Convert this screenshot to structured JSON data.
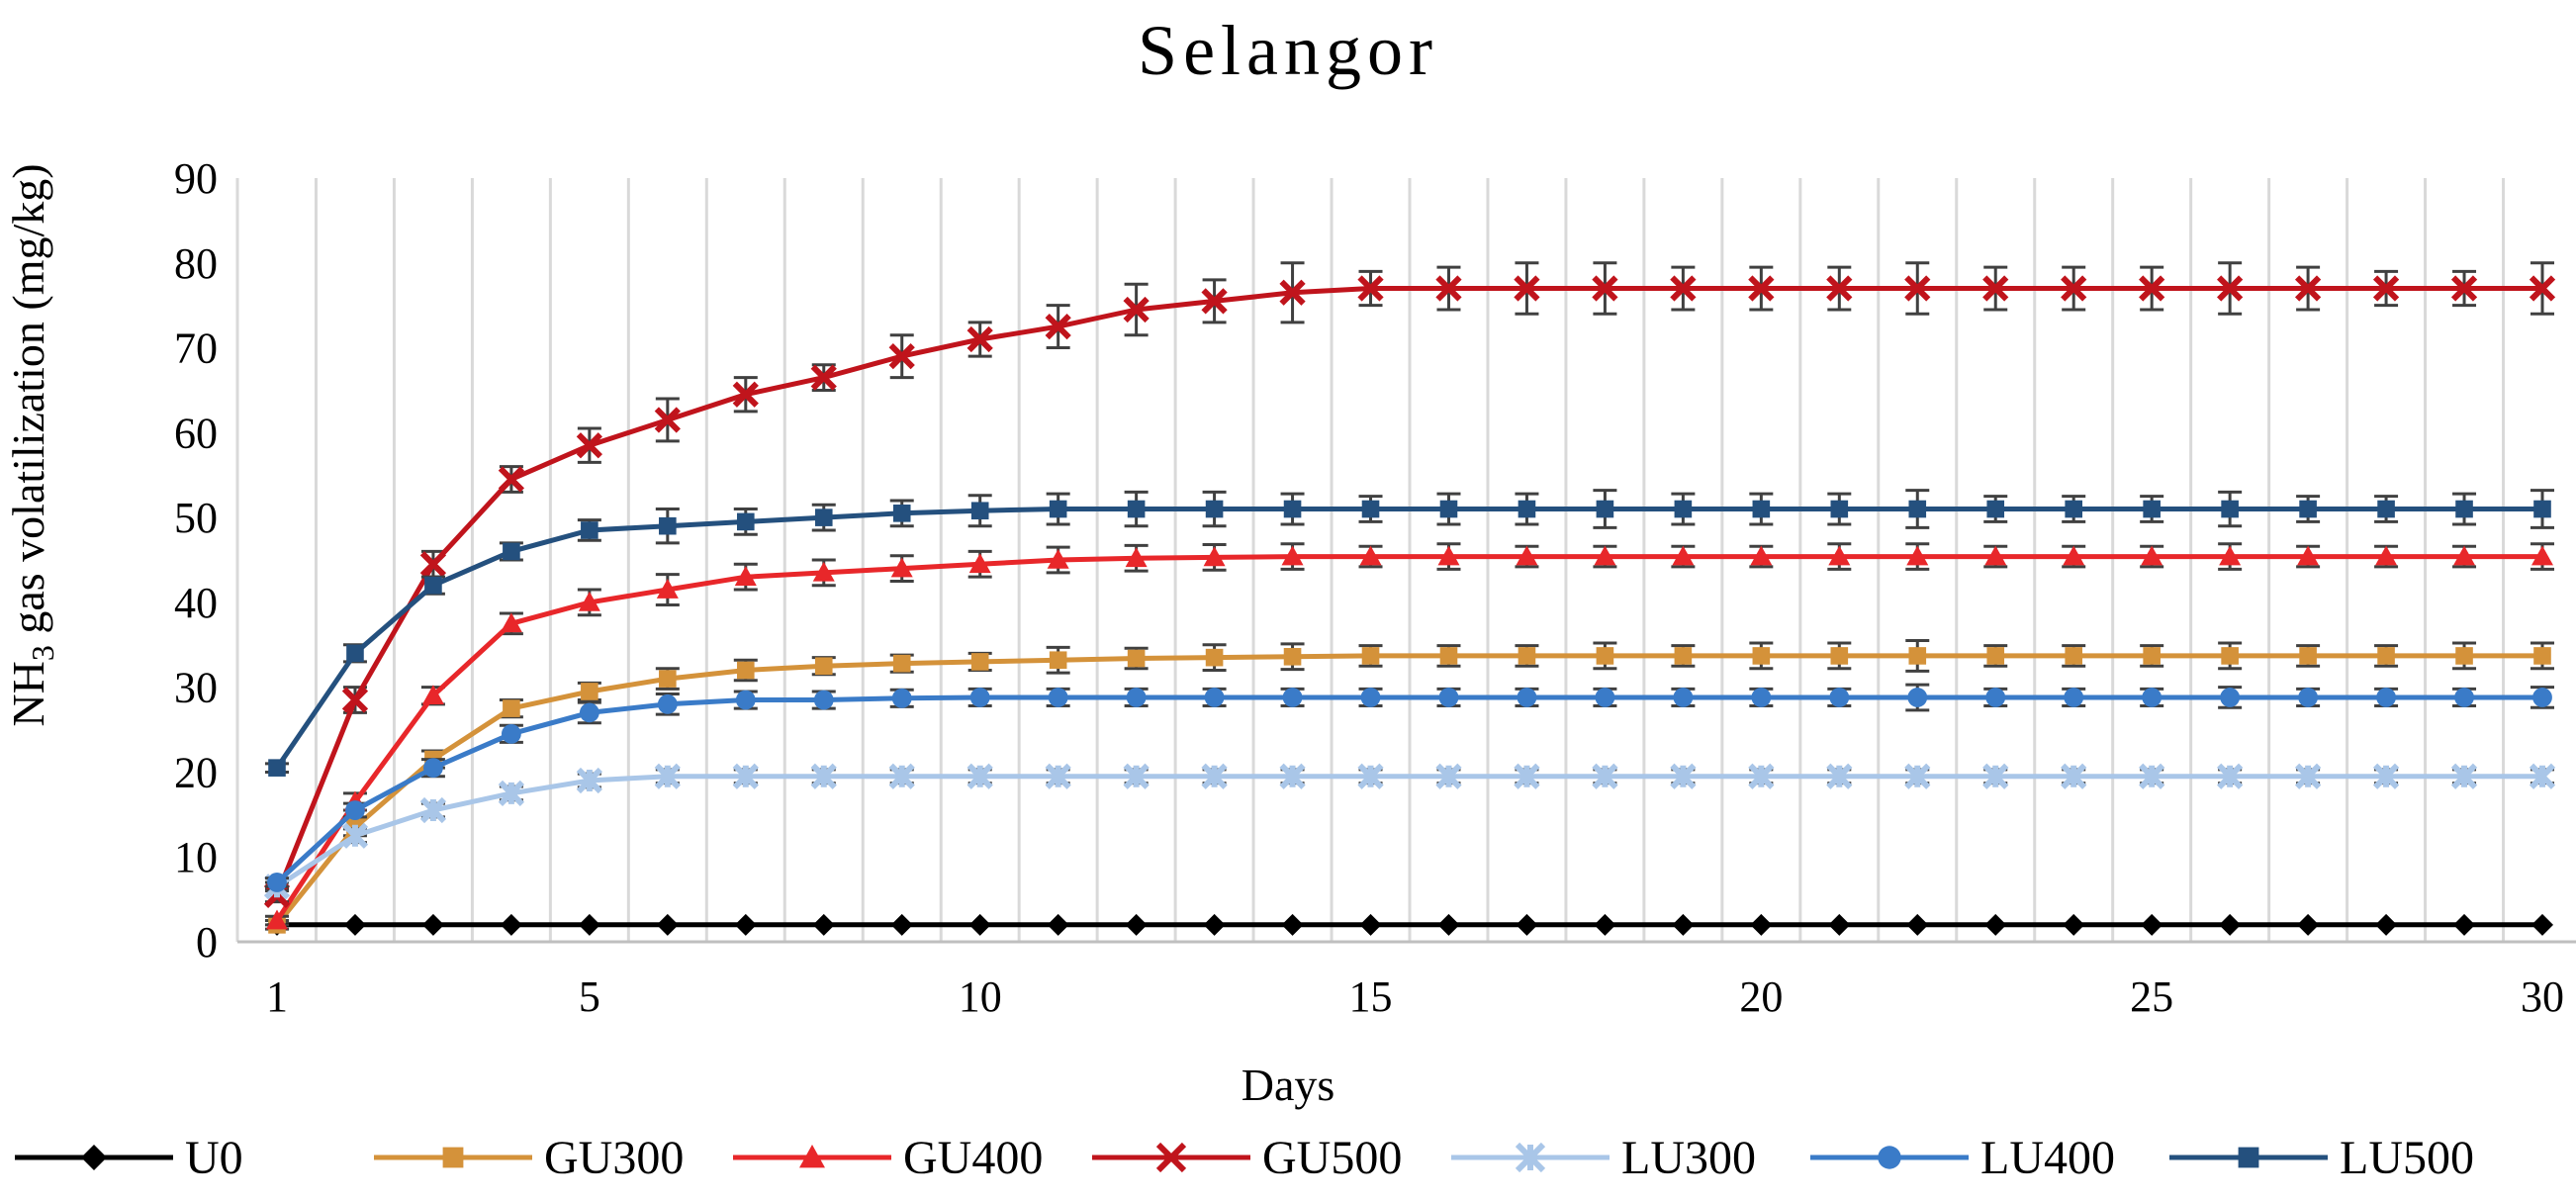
{
  "chart_data": {
    "type": "line",
    "title": "Selangor",
    "xlabel": "Days",
    "ylabel_prefix": "NH",
    "ylabel_sub": "3",
    "ylabel_suffix": " gas volatilization (mg/kg)",
    "ylim": [
      0,
      90
    ],
    "yticks": [
      0,
      10,
      20,
      30,
      40,
      50,
      60,
      70,
      80,
      90
    ],
    "xlim": [
      1,
      30
    ],
    "xticks": [
      1,
      5,
      10,
      15,
      20,
      25,
      30
    ],
    "x": [
      1,
      2,
      3,
      4,
      5,
      6,
      7,
      8,
      9,
      10,
      11,
      12,
      13,
      14,
      15,
      16,
      17,
      18,
      19,
      20,
      21,
      22,
      23,
      24,
      25,
      26,
      27,
      28,
      29,
      30
    ],
    "grid": "vertical",
    "legend_position": "bottom",
    "series": [
      {
        "name": "U0",
        "color": "#000000",
        "marker": "diamond",
        "values": [
          2,
          2,
          2,
          2,
          2,
          2,
          2,
          2,
          2,
          2,
          2,
          2,
          2,
          2,
          2,
          2,
          2,
          2,
          2,
          2,
          2,
          2,
          2,
          2,
          2,
          2,
          2,
          2,
          2,
          2
        ],
        "errors": [
          0,
          0,
          0,
          0,
          0,
          0,
          0,
          0,
          0,
          0,
          0,
          0,
          0,
          0,
          0,
          0,
          0,
          0,
          0,
          0,
          0,
          0,
          0,
          0,
          0,
          0,
          0,
          0,
          0,
          0
        ]
      },
      {
        "name": "GU300",
        "color": "#D4923A",
        "marker": "square",
        "values": [
          2,
          13.5,
          21.5,
          27.5,
          29.5,
          31,
          32,
          32.5,
          32.8,
          33,
          33.2,
          33.4,
          33.5,
          33.6,
          33.7,
          33.7,
          33.7,
          33.7,
          33.7,
          33.7,
          33.7,
          33.7,
          33.7,
          33.7,
          33.7,
          33.7,
          33.7,
          33.7,
          33.7,
          33.7
        ],
        "errors": [
          0.5,
          1,
          1,
          1,
          1,
          1.2,
          1.2,
          1,
          1,
          1,
          1.5,
          1.2,
          1.5,
          1.5,
          1.2,
          1.2,
          1.2,
          1.5,
          1.2,
          1.5,
          1.5,
          1.8,
          1.2,
          1.2,
          1.2,
          1.5,
          1.2,
          1.2,
          1.5,
          1.5
        ]
      },
      {
        "name": "GU400",
        "color": "#E8272A",
        "marker": "triangle",
        "values": [
          2.5,
          16.5,
          29,
          37.5,
          40,
          41.5,
          43,
          43.5,
          44,
          44.5,
          45,
          45.2,
          45.3,
          45.4,
          45.4,
          45.4,
          45.4,
          45.4,
          45.4,
          45.4,
          45.4,
          45.4,
          45.4,
          45.4,
          45.4,
          45.4,
          45.4,
          45.4,
          45.4,
          45.4
        ],
        "errors": [
          0.5,
          1,
          1,
          1.2,
          1.5,
          1.8,
          1.5,
          1.5,
          1.5,
          1.5,
          1.5,
          1.5,
          1.5,
          1.5,
          1.2,
          1.5,
          1.2,
          1.2,
          1.2,
          1.2,
          1.5,
          1.5,
          1.2,
          1.2,
          1.2,
          1.5,
          1.2,
          1.2,
          1.2,
          1.5
        ]
      },
      {
        "name": "GU500",
        "color": "#C0141C",
        "marker": "x",
        "values": [
          5.5,
          28.5,
          44.5,
          54.5,
          58.5,
          61.5,
          64.5,
          66.5,
          69,
          71,
          72.5,
          74.5,
          75.5,
          76.5,
          77,
          77,
          77,
          77,
          77,
          77,
          77,
          77,
          77,
          77,
          77,
          77,
          77,
          77,
          77,
          77
        ],
        "errors": [
          0.8,
          1.5,
          1.5,
          1.5,
          2,
          2.5,
          2,
          1.5,
          2.5,
          2,
          2.5,
          3,
          2.5,
          3.5,
          2,
          2.5,
          3,
          3,
          2.5,
          2.5,
          2.5,
          3,
          2.5,
          2.5,
          2.5,
          3,
          2.5,
          2,
          2,
          3
        ]
      },
      {
        "name": "LU300",
        "color": "#A9C6E8",
        "marker": "asterisk",
        "values": [
          6.5,
          12.5,
          15.5,
          17.5,
          19,
          19.5,
          19.5,
          19.5,
          19.5,
          19.5,
          19.5,
          19.5,
          19.5,
          19.5,
          19.5,
          19.5,
          19.5,
          19.5,
          19.5,
          19.5,
          19.5,
          19.5,
          19.5,
          19.5,
          19.5,
          19.5,
          19.5,
          19.5,
          19.5,
          19.5
        ],
        "errors": [
          0.5,
          0.8,
          0.8,
          0.8,
          0.8,
          0.8,
          0.8,
          0.8,
          0.8,
          0.8,
          0.8,
          0.8,
          0.8,
          0.8,
          0.8,
          0.8,
          0.8,
          0.8,
          0.8,
          0.8,
          0.8,
          0.8,
          0.8,
          0.8,
          0.8,
          0.8,
          0.8,
          0.8,
          0.8,
          0.8
        ]
      },
      {
        "name": "LU400",
        "color": "#3A7BC8",
        "marker": "circle",
        "values": [
          7,
          15.5,
          20.5,
          24.5,
          27,
          28,
          28.5,
          28.5,
          28.7,
          28.8,
          28.8,
          28.8,
          28.8,
          28.8,
          28.8,
          28.8,
          28.8,
          28.8,
          28.8,
          28.8,
          28.8,
          28.8,
          28.8,
          28.8,
          28.8,
          28.8,
          28.8,
          28.8,
          28.8,
          28.8
        ],
        "errors": [
          0.5,
          0.8,
          1,
          1,
          1.2,
          1.2,
          1,
          1,
          1,
          1,
          1,
          1,
          1,
          1,
          1,
          1,
          1,
          1,
          1,
          1,
          1,
          1.5,
          1,
          1,
          1,
          1.2,
          1,
          1,
          1,
          1.2
        ]
      },
      {
        "name": "LU500",
        "color": "#24507E",
        "marker": "square",
        "values": [
          20.5,
          34,
          42,
          46,
          48.5,
          49,
          49.5,
          50,
          50.5,
          50.8,
          51,
          51,
          51,
          51,
          51,
          51,
          51,
          51,
          51,
          51,
          51,
          51,
          51,
          51,
          51,
          51,
          51,
          51,
          51,
          51
        ],
        "errors": [
          0.5,
          1,
          1,
          1,
          1.2,
          2,
          1.5,
          1.5,
          1.5,
          1.8,
          1.8,
          2,
          2,
          1.8,
          1.5,
          1.8,
          1.8,
          2.2,
          1.8,
          1.8,
          1.8,
          2.2,
          1.5,
          1.5,
          1.5,
          2,
          1.5,
          1.5,
          1.8,
          2.2
        ]
      }
    ]
  }
}
